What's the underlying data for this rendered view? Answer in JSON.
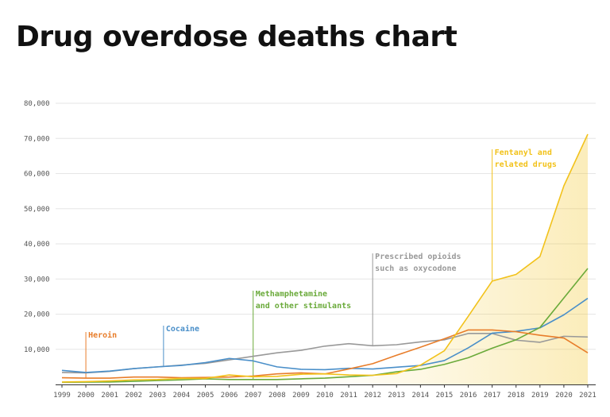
{
  "page": {
    "title": "Drug overdose deaths chart"
  },
  "chart_data": {
    "type": "line",
    "title": "Drug overdose deaths chart",
    "xlabel": "",
    "ylabel": "",
    "ylim": [
      0,
      80000
    ],
    "yticks": [
      10000,
      20000,
      30000,
      40000,
      50000,
      60000,
      70000,
      80000
    ],
    "ytick_labels": [
      "10,000",
      "20,000",
      "30,000",
      "40,000",
      "50,000",
      "60,000",
      "70,000",
      "80,000"
    ],
    "x": [
      "1999",
      "2000",
      "2001",
      "2002",
      "2003",
      "2004",
      "2005",
      "2006",
      "2007",
      "2008",
      "2009",
      "2010",
      "2011",
      "2012",
      "2013",
      "2014",
      "2015",
      "2016",
      "2017",
      "2018",
      "2019",
      "2020",
      "2021"
    ],
    "grid": true,
    "series": [
      {
        "name": "Prescribed opioids such as oxycodone",
        "color": "#999999",
        "values": [
          3400,
          3300,
          3700,
          4500,
          5000,
          5500,
          6000,
          7000,
          8000,
          9000,
          9700,
          10900,
          11600,
          11000,
          11300,
          12100,
          12700,
          14500,
          14500,
          12600,
          12000,
          13700,
          13500
        ]
      },
      {
        "name": "Cocaine",
        "color": "#4a8fc9",
        "values": [
          4000,
          3400,
          3800,
          4500,
          5000,
          5400,
          6200,
          7400,
          6700,
          5000,
          4300,
          4200,
          4600,
          4400,
          4900,
          5400,
          6800,
          10400,
          14600,
          15100,
          16100,
          19800,
          24500
        ]
      },
      {
        "name": "Methamphetamine and other stimulants",
        "color": "#6aaa3a",
        "values": [
          600,
          650,
          700,
          900,
          1100,
          1300,
          1600,
          1400,
          1400,
          1400,
          1600,
          1800,
          2200,
          2600,
          3600,
          4300,
          5700,
          7600,
          10300,
          12700,
          16200,
          24600,
          33000
        ]
      },
      {
        "name": "Heroin",
        "color": "#e87d2a",
        "values": [
          1900,
          1800,
          1800,
          2100,
          2100,
          1900,
          2000,
          2100,
          2400,
          3000,
          3300,
          3000,
          4400,
          5900,
          8300,
          10600,
          13000,
          15500,
          15500,
          15000,
          14000,
          13200,
          9000
        ]
      },
      {
        "name": "Fentanyl and related drugs",
        "color": "#f2c21b",
        "values": [
          700,
          800,
          1000,
          1300,
          1400,
          1700,
          1700,
          2700,
          2200,
          2300,
          2900,
          3000,
          2700,
          2600,
          3100,
          5500,
          9600,
          19400,
          29400,
          31300,
          36400,
          56500,
          71200
        ]
      }
    ],
    "annotations": [
      {
        "series": "Heroin",
        "lines": [
          "Heroin"
        ]
      },
      {
        "series": "Cocaine",
        "lines": [
          "Cocaine"
        ]
      },
      {
        "series": "Methamphetamine and other stimulants",
        "lines": [
          "Methamphetamine",
          "and other stimulants"
        ]
      },
      {
        "series": "Prescribed opioids such as oxycodone",
        "lines": [
          "Prescribed opioids",
          "such as oxycodone"
        ]
      },
      {
        "series": "Fentanyl and related drugs",
        "lines": [
          "Fentanyl and",
          "related drugs"
        ]
      }
    ]
  }
}
